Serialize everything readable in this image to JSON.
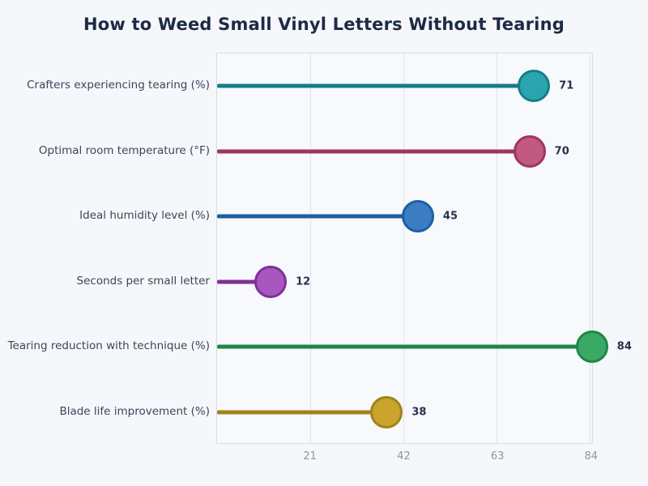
{
  "title": "How to Weed Small Vinyl Letters Without Tearing",
  "chart_data": {
    "type": "bar",
    "style": "horizontal-lollipop",
    "title": "How to Weed Small Vinyl Letters Without Tearing",
    "categories": [
      "Crafters experiencing tearing (%)",
      "Optimal room temperature (°F)",
      "Ideal humidity level (%)",
      "Seconds per small letter",
      "Tearing reduction with technique (%)",
      "Blade life improvement (%)"
    ],
    "values": [
      71,
      70,
      45,
      12,
      84,
      38
    ],
    "value_labels": [
      "71",
      "70",
      "45",
      "12",
      "84",
      "38"
    ],
    "series_colors": [
      {
        "fill": "#2aa4ad",
        "stroke": "#157e87"
      },
      {
        "fill": "#c25980",
        "stroke": "#9e3563"
      },
      {
        "fill": "#3c7dc1",
        "stroke": "#1d5fa3"
      },
      {
        "fill": "#a757bd",
        "stroke": "#7e3295"
      },
      {
        "fill": "#39a964",
        "stroke": "#1e8747"
      },
      {
        "fill": "#c9a42e",
        "stroke": "#a2831a"
      }
    ],
    "xlabel": "",
    "ylabel": "",
    "xticks": [
      21,
      42,
      63,
      84
    ],
    "xlim": [
      0,
      84.4
    ],
    "grid": true,
    "legend": "none"
  },
  "colors": {
    "background": "#f5f7fa",
    "plot_background": "#f7f9fc",
    "plot_border": "#d6dbe3",
    "gridline": "#e0e4ea",
    "title_text": "#1e2a45",
    "category_text": "#3c465a",
    "value_text": "#27314c",
    "tick_text": "#8d95a6"
  }
}
